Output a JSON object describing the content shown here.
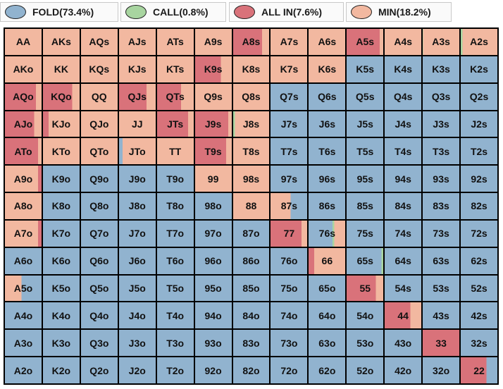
{
  "colors": {
    "fold": "#91b3cf",
    "call": "#a8d5a0",
    "allin": "#d9727a",
    "min": "#f2b8a0"
  },
  "legend": [
    {
      "key": "fold",
      "label": "FOLD(73.4%)",
      "color": "#91b3cf"
    },
    {
      "key": "call",
      "label": "CALL(0.8%)",
      "color": "#a8d5a0"
    },
    {
      "key": "allin",
      "label": "ALL IN(7.6%)",
      "color": "#d9727a"
    },
    {
      "key": "min",
      "label": "MIN(18.2%)",
      "color": "#f2b8a0"
    }
  ],
  "hands": [
    [
      "AA",
      "AKs",
      "AQs",
      "AJs",
      "ATs",
      "A9s",
      "A8s",
      "A7s",
      "A6s",
      "A5s",
      "A4s",
      "A3s",
      "A2s"
    ],
    [
      "AKo",
      "KK",
      "KQs",
      "KJs",
      "KTs",
      "K9s",
      "K8s",
      "K7s",
      "K6s",
      "K5s",
      "K4s",
      "K3s",
      "K2s"
    ],
    [
      "AQo",
      "KQo",
      "QQ",
      "QJs",
      "QTs",
      "Q9s",
      "Q8s",
      "Q7s",
      "Q6s",
      "Q5s",
      "Q4s",
      "Q3s",
      "Q2s"
    ],
    [
      "AJo",
      "KJo",
      "QJo",
      "JJ",
      "JTs",
      "J9s",
      "J8s",
      "J7s",
      "J6s",
      "J5s",
      "J4s",
      "J3s",
      "J2s"
    ],
    [
      "ATo",
      "KTo",
      "QTo",
      "JTo",
      "TT",
      "T9s",
      "T8s",
      "T7s",
      "T6s",
      "T5s",
      "T4s",
      "T3s",
      "T2s"
    ],
    [
      "A9o",
      "K9o",
      "Q9o",
      "J9o",
      "T9o",
      "99",
      "98s",
      "97s",
      "96s",
      "95s",
      "94s",
      "93s",
      "92s"
    ],
    [
      "A8o",
      "K8o",
      "Q8o",
      "J8o",
      "T8o",
      "98o",
      "88",
      "87s",
      "86s",
      "85s",
      "84s",
      "83s",
      "82s"
    ],
    [
      "A7o",
      "K7o",
      "Q7o",
      "J7o",
      "T7o",
      "97o",
      "87o",
      "77",
      "76s",
      "75s",
      "74s",
      "73s",
      "72s"
    ],
    [
      "A6o",
      "K6o",
      "Q6o",
      "J6o",
      "T6o",
      "96o",
      "86o",
      "76o",
      "66",
      "65s",
      "64s",
      "63s",
      "62s"
    ],
    [
      "A5o",
      "K5o",
      "Q5o",
      "J5o",
      "T5o",
      "95o",
      "85o",
      "75o",
      "65o",
      "55",
      "54s",
      "53s",
      "52s"
    ],
    [
      "A4o",
      "K4o",
      "Q4o",
      "J4o",
      "T4o",
      "94o",
      "84o",
      "74o",
      "64o",
      "54o",
      "44",
      "43s",
      "42s"
    ],
    [
      "A3o",
      "K3o",
      "Q3o",
      "J3o",
      "T3o",
      "93o",
      "83o",
      "73o",
      "63o",
      "53o",
      "43o",
      "33",
      "32s"
    ],
    [
      "A2o",
      "K2o",
      "Q2o",
      "J2o",
      "T2o",
      "92o",
      "82o",
      "72o",
      "62o",
      "52o",
      "42o",
      "32o",
      "22"
    ]
  ],
  "mix": {
    "AA": {
      "min": 1
    },
    "AKs": {
      "min": 1
    },
    "AQs": {
      "min": 1
    },
    "AJs": {
      "min": 1
    },
    "ATs": {
      "min": 1
    },
    "A9s": {
      "min": 1
    },
    "A8s": {
      "allin": 0.8,
      "min": 0.2
    },
    "A7s": {
      "min": 1
    },
    "A6s": {
      "min": 1
    },
    "A5s": {
      "allin": 0.9,
      "min": 0.1
    },
    "A4s": {
      "min": 1
    },
    "A3s": {
      "min": 0.99,
      "call": 0.01
    },
    "A2s": {
      "call": 0.05,
      "min": 0.95
    },
    "AKo": {
      "min": 1
    },
    "KK": {
      "min": 1
    },
    "KQs": {
      "min": 1
    },
    "KJs": {
      "min": 1
    },
    "KTs": {
      "min": 1
    },
    "K9s": {
      "allin": 0.7,
      "min": 0.3
    },
    "K8s": {
      "min": 1
    },
    "K7s": {
      "min": 1
    },
    "K6s": {
      "min": 1
    },
    "K5s": {
      "fold": 1
    },
    "K4s": {
      "fold": 1
    },
    "K3s": {
      "fold": 1
    },
    "K2s": {
      "fold": 1
    },
    "AQo": {
      "allin": 0.85,
      "min": 0.15
    },
    "KQo": {
      "allin": 0.8,
      "min": 0.2
    },
    "QQ": {
      "min": 1
    },
    "QJs": {
      "allin": 0.75,
      "min": 0.25
    },
    "QTs": {
      "allin": 0.65,
      "min": 0.35
    },
    "Q9s": {
      "min": 1
    },
    "Q8s": {
      "min": 1
    },
    "Q7s": {
      "fold": 1
    },
    "Q6s": {
      "fold": 1
    },
    "Q5s": {
      "fold": 1
    },
    "Q4s": {
      "fold": 1
    },
    "Q3s": {
      "fold": 1
    },
    "Q2s": {
      "fold": 1
    },
    "AJo": {
      "allin": 0.8,
      "min": 0.2
    },
    "KJo": {
      "allin": 0.15,
      "min": 0.85
    },
    "QJo": {
      "min": 1
    },
    "JJ": {
      "min": 1
    },
    "JTs": {
      "allin": 0.85,
      "min": 0.15
    },
    "J9s": {
      "allin": 0.9,
      "min": 0.1
    },
    "J8s": {
      "call": 0.05,
      "min": 0.95
    },
    "J7s": {
      "fold": 1
    },
    "J6s": {
      "fold": 1
    },
    "J5s": {
      "fold": 1
    },
    "J4s": {
      "fold": 1
    },
    "J3s": {
      "fold": 1
    },
    "J2s": {
      "fold": 1
    },
    "ATo": {
      "allin": 0.9,
      "min": 0.1
    },
    "KTo": {
      "min": 1
    },
    "QTo": {
      "min": 1
    },
    "JTo": {
      "min": 0.1,
      "fold": 0.1,
      "allin": 0,
      "call": 0,
      "min2": 0.8
    },
    "TT": {
      "min": 1
    },
    "T9s": {
      "allin": 0.85,
      "min": 0.15
    },
    "T8s": {
      "min": 1
    },
    "T7s": {
      "fold": 1
    },
    "T6s": {
      "fold": 1
    },
    "T5s": {
      "fold": 1
    },
    "T4s": {
      "fold": 1
    },
    "T3s": {
      "fold": 1
    },
    "T2s": {
      "fold": 1
    },
    "A9o": {
      "allin": 0.1,
      "min": 0.9
    },
    "K9o": {
      "fold": 1
    },
    "Q9o": {
      "fold": 1
    },
    "J9o": {
      "fold": 1
    },
    "T9o": {
      "fold": 1
    },
    "99": {
      "min": 1
    },
    "98s": {
      "min": 1
    },
    "97s": {
      "fold": 1
    },
    "96s": {
      "fold": 1
    },
    "95s": {
      "fold": 1
    },
    "94s": {
      "fold": 1
    },
    "93s": {
      "fold": 1
    },
    "92s": {
      "fold": 1
    },
    "A8o": {
      "min": 1
    },
    "K8o": {
      "fold": 1
    },
    "Q8o": {
      "fold": 1
    },
    "J8o": {
      "fold": 1
    },
    "T8o": {
      "fold": 1
    },
    "98o": {
      "fold": 1
    },
    "88": {
      "min": 1
    },
    "87s": {
      "min": 0.55,
      "fold": 0.45
    },
    "86s": {
      "fold": 1
    },
    "85s": {
      "fold": 1
    },
    "84s": {
      "fold": 1
    },
    "83s": {
      "fold": 1
    },
    "82s": {
      "fold": 1
    },
    "A7o": {
      "allin": 0.1,
      "min": 0.9
    },
    "K7o": {
      "fold": 1
    },
    "Q7o": {
      "fold": 1
    },
    "J7o": {
      "fold": 1
    },
    "T7o": {
      "fold": 1
    },
    "97o": {
      "fold": 1
    },
    "87o": {
      "fold": 1
    },
    "77": {
      "allin": 0.85,
      "min": 0.15
    },
    "76s": {
      "fold": 0.65,
      "call": 0.05,
      "min": 0.3
    },
    "75s": {
      "fold": 1
    },
    "74s": {
      "fold": 1
    },
    "73s": {
      "fold": 1
    },
    "72s": {
      "fold": 1
    },
    "A6o": {
      "fold": 1
    },
    "K6o": {
      "fold": 1
    },
    "Q6o": {
      "fold": 1
    },
    "J6o": {
      "fold": 1
    },
    "T6o": {
      "fold": 1
    },
    "96o": {
      "fold": 1
    },
    "86o": {
      "fold": 1
    },
    "76o": {
      "fold": 1
    },
    "66": {
      "allin": 0.15,
      "min": 0.85
    },
    "65s": {
      "fold": 0.95,
      "call": 0.05
    },
    "64s": {
      "fold": 1
    },
    "63s": {
      "fold": 1
    },
    "62s": {
      "fold": 1
    },
    "A5o": {
      "fold": 0.55,
      "min": 0.45
    },
    "K5o": {
      "fold": 1
    },
    "Q5o": {
      "fold": 1
    },
    "J5o": {
      "fold": 1
    },
    "T5o": {
      "fold": 1
    },
    "95o": {
      "fold": 1
    },
    "85o": {
      "fold": 1
    },
    "75o": {
      "fold": 1
    },
    "65o": {
      "fold": 1
    },
    "55": {
      "allin": 0.8,
      "min": 0.2
    },
    "54s": {
      "fold": 1
    },
    "53s": {
      "fold": 1
    },
    "52s": {
      "fold": 1
    },
    "A4o": {
      "fold": 1
    },
    "K4o": {
      "fold": 1
    },
    "Q4o": {
      "fold": 1
    },
    "J4o": {
      "fold": 1
    },
    "T4o": {
      "fold": 1
    },
    "94o": {
      "fold": 1
    },
    "84o": {
      "fold": 1
    },
    "74o": {
      "fold": 1
    },
    "64o": {
      "fold": 1
    },
    "54o": {
      "fold": 1
    },
    "44": {
      "allin": 0.7,
      "min": 0.3
    },
    "43s": {
      "fold": 1
    },
    "42s": {
      "fold": 1
    },
    "A3o": {
      "fold": 1
    },
    "K3o": {
      "fold": 1
    },
    "Q3o": {
      "fold": 1
    },
    "J3o": {
      "fold": 1
    },
    "T3o": {
      "fold": 1
    },
    "93o": {
      "fold": 1
    },
    "83o": {
      "fold": 1
    },
    "73o": {
      "fold": 1
    },
    "63o": {
      "fold": 1
    },
    "53o": {
      "fold": 1
    },
    "43o": {
      "fold": 1
    },
    "33": {
      "allin": 1
    },
    "32s": {
      "fold": 1
    },
    "A2o": {
      "fold": 1
    },
    "K2o": {
      "fold": 1
    },
    "Q2o": {
      "fold": 1
    },
    "J2o": {
      "fold": 1
    },
    "T2o": {
      "fold": 1
    },
    "92o": {
      "fold": 1
    },
    "82o": {
      "fold": 1
    },
    "72o": {
      "fold": 1
    },
    "62o": {
      "fold": 1
    },
    "52o": {
      "fold": 1
    },
    "42o": {
      "fold": 1
    },
    "32o": {
      "fold": 1
    },
    "22": {
      "allin": 0.7,
      "fold": 0.3
    }
  }
}
